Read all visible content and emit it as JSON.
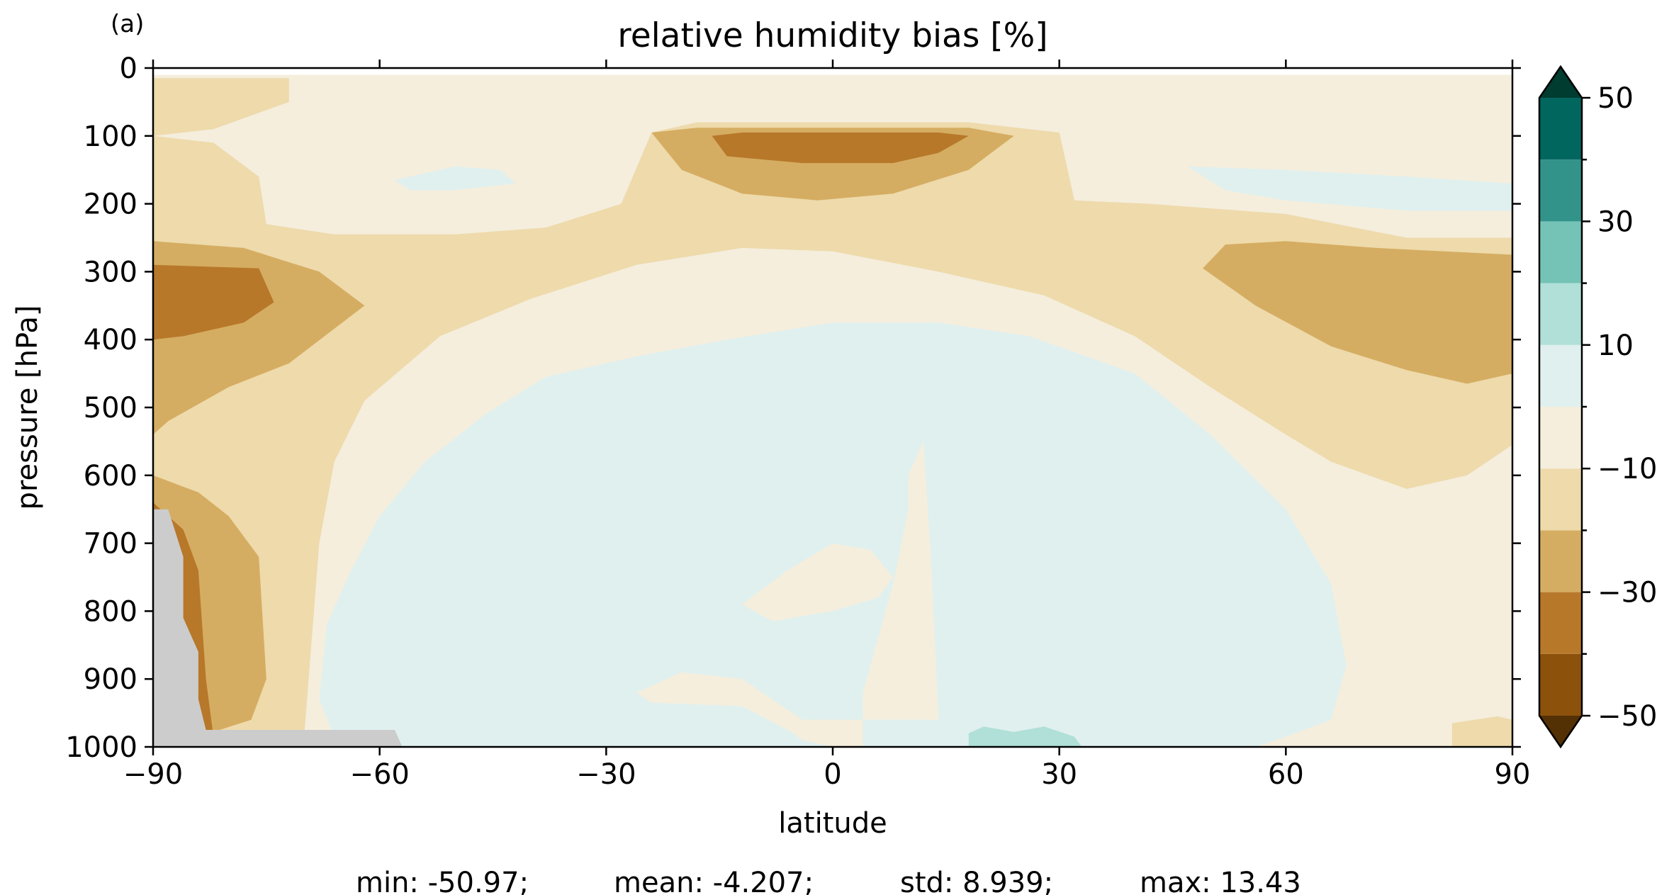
{
  "chart_data": {
    "type": "contour",
    "panel_label": "(a)",
    "title": "relative humidity bias [%]",
    "xlabel": "latitude",
    "ylabel": "pressure [hPa]",
    "xlim": [
      -90,
      90
    ],
    "ylim": [
      1000,
      0
    ],
    "xticks": [
      -90,
      -60,
      -30,
      0,
      30,
      60,
      90
    ],
    "xtick_labels": [
      "−90",
      "−60",
      "−30",
      "0",
      "30",
      "60",
      "90"
    ],
    "yticks": [
      0,
      100,
      200,
      300,
      400,
      500,
      600,
      700,
      800,
      900,
      1000
    ],
    "ytick_labels": [
      "0",
      "100",
      "200",
      "300",
      "400",
      "500",
      "600",
      "700",
      "800",
      "900",
      "1000"
    ],
    "colorbar": {
      "levels": [
        -50,
        -40,
        -30,
        -20,
        -10,
        0,
        10,
        20,
        30,
        40,
        50
      ],
      "labeled_ticks": [
        50,
        30,
        10,
        -10,
        -30,
        -50
      ],
      "tick_labels": [
        "50",
        "30",
        "10",
        "−10",
        "−30",
        "−50"
      ],
      "extend": "both",
      "colors": [
        "#8c510a",
        "#b7782a",
        "#d5ad62",
        "#eedaab",
        "#f5eedd",
        "#e0f0ef",
        "#b0e0d8",
        "#74c3b6",
        "#319389",
        "#01665e"
      ],
      "under_color": "#543005",
      "over_color": "#003c30"
    },
    "missing_color": "#cccccc",
    "stats": [
      {
        "label": "min: -50.97;"
      },
      {
        "label": "mean: -4.207;"
      },
      {
        "label": "std: 8.939;"
      },
      {
        "label": "max: 13.43"
      }
    ],
    "regions": [
      {
        "class": "-10 to 0",
        "points": [
          [
            -90,
            10
          ],
          [
            90,
            10
          ],
          [
            90,
            1000
          ],
          [
            -90,
            1000
          ]
        ]
      },
      {
        "class": "-20 to -10",
        "points": [
          [
            -90,
            15
          ],
          [
            -72,
            15
          ],
          [
            -72,
            50
          ],
          [
            -82,
            90
          ],
          [
            -90,
            100
          ]
        ]
      },
      {
        "class": "-20 to -10",
        "points": [
          [
            -90,
            100
          ],
          [
            -82,
            110
          ],
          [
            -76,
            160
          ],
          [
            -75,
            230
          ],
          [
            -66,
            245
          ],
          [
            -50,
            245
          ],
          [
            -38,
            235
          ],
          [
            -28,
            200
          ],
          [
            -24,
            95
          ],
          [
            -18,
            80
          ],
          [
            18,
            80
          ],
          [
            30,
            95
          ],
          [
            32,
            195
          ],
          [
            42,
            200
          ],
          [
            60,
            215
          ],
          [
            76,
            250
          ],
          [
            90,
            250
          ],
          [
            90,
            555
          ],
          [
            84,
            600
          ],
          [
            76,
            620
          ],
          [
            66,
            580
          ],
          [
            60,
            540
          ],
          [
            50,
            470
          ],
          [
            40,
            395
          ],
          [
            28,
            335
          ],
          [
            14,
            300
          ],
          [
            0,
            270
          ],
          [
            -12,
            265
          ],
          [
            -26,
            290
          ],
          [
            -40,
            340
          ],
          [
            -52,
            395
          ],
          [
            -62,
            490
          ],
          [
            -66,
            580
          ],
          [
            -68,
            700
          ],
          [
            -70,
            985
          ],
          [
            -90,
            985
          ]
        ]
      },
      {
        "class": "-20 to -10",
        "points": [
          [
            82,
            965
          ],
          [
            88,
            955
          ],
          [
            90,
            960
          ],
          [
            90,
            1000
          ],
          [
            82,
            1000
          ]
        ]
      },
      {
        "class": "-30 to -20",
        "points": [
          [
            -90,
            255
          ],
          [
            -78,
            265
          ],
          [
            -68,
            300
          ],
          [
            -62,
            350
          ],
          [
            -72,
            435
          ],
          [
            -80,
            470
          ],
          [
            -88,
            520
          ],
          [
            -90,
            540
          ]
        ]
      },
      {
        "class": "-30 to -20",
        "points": [
          [
            -90,
            600
          ],
          [
            -84,
            625
          ],
          [
            -80,
            660
          ],
          [
            -76,
            720
          ],
          [
            -75,
            900
          ],
          [
            -77,
            960
          ],
          [
            -84,
            985
          ],
          [
            -90,
            985
          ]
        ]
      },
      {
        "class": "-30 to -20",
        "points": [
          [
            -24,
            95
          ],
          [
            -18,
            88
          ],
          [
            18,
            88
          ],
          [
            24,
            100
          ],
          [
            18,
            150
          ],
          [
            8,
            185
          ],
          [
            -2,
            195
          ],
          [
            -12,
            185
          ],
          [
            -20,
            150
          ]
        ]
      },
      {
        "class": "-30 to -20",
        "points": [
          [
            49,
            295
          ],
          [
            52,
            260
          ],
          [
            60,
            255
          ],
          [
            72,
            265
          ],
          [
            90,
            275
          ],
          [
            90,
            450
          ],
          [
            84,
            465
          ],
          [
            76,
            445
          ],
          [
            66,
            410
          ],
          [
            56,
            350
          ]
        ]
      },
      {
        "class": "-40 to -30",
        "points": [
          [
            -90,
            290
          ],
          [
            -76,
            295
          ],
          [
            -74,
            345
          ],
          [
            -78,
            375
          ],
          [
            -86,
            395
          ],
          [
            -90,
            400
          ]
        ]
      },
      {
        "class": "-40 to -30",
        "points": [
          [
            -90,
            640
          ],
          [
            -86,
            680
          ],
          [
            -84,
            740
          ],
          [
            -83,
            900
          ],
          [
            -82,
            985
          ],
          [
            -87,
            985
          ],
          [
            -90,
            940
          ]
        ]
      },
      {
        "class": "-40 to -30",
        "points": [
          [
            -16,
            100
          ],
          [
            -12,
            95
          ],
          [
            14,
            95
          ],
          [
            18,
            100
          ],
          [
            14,
            125
          ],
          [
            8,
            140
          ],
          [
            -4,
            140
          ],
          [
            -14,
            130
          ]
        ]
      },
      {
        "class": "0 to 10",
        "points": [
          [
            -56,
            1000
          ],
          [
            -66,
            985
          ],
          [
            -68,
            930
          ],
          [
            -67,
            820
          ],
          [
            -64,
            745
          ],
          [
            -60,
            660
          ],
          [
            -54,
            580
          ],
          [
            -46,
            510
          ],
          [
            -38,
            455
          ],
          [
            -26,
            425
          ],
          [
            -14,
            400
          ],
          [
            0,
            375
          ],
          [
            14,
            375
          ],
          [
            26,
            395
          ],
          [
            40,
            450
          ],
          [
            50,
            540
          ],
          [
            60,
            650
          ],
          [
            66,
            760
          ],
          [
            68,
            880
          ],
          [
            66,
            960
          ],
          [
            60,
            985
          ],
          [
            56,
            1000
          ]
        ]
      },
      {
        "class": "0 to 10",
        "points": [
          [
            -58,
            165
          ],
          [
            -50,
            145
          ],
          [
            -44,
            150
          ],
          [
            -42,
            170
          ],
          [
            -50,
            180
          ],
          [
            -56,
            180
          ]
        ]
      },
      {
        "class": "0 to 10",
        "points": [
          [
            47,
            145
          ],
          [
            60,
            150
          ],
          [
            76,
            160
          ],
          [
            90,
            170
          ],
          [
            90,
            210
          ],
          [
            76,
            210
          ],
          [
            60,
            195
          ],
          [
            52,
            180
          ]
        ]
      },
      {
        "class": "-10 to 0",
        "points": [
          [
            12,
            550
          ],
          [
            13,
            720
          ],
          [
            14,
            960
          ],
          [
            -4,
            960
          ],
          [
            -8,
            930
          ],
          [
            -12,
            900
          ],
          [
            -20,
            890
          ],
          [
            -26,
            920
          ],
          [
            -24,
            935
          ],
          [
            -12,
            940
          ],
          [
            -6,
            975
          ],
          [
            -4,
            990
          ],
          [
            0,
            1000
          ],
          [
            4,
            1000
          ],
          [
            4,
            960
          ],
          [
            4,
            920
          ],
          [
            5,
            880
          ],
          [
            6,
            840
          ],
          [
            8,
            760
          ],
          [
            10,
            650
          ],
          [
            10,
            600
          ]
        ]
      },
      {
        "class": "-10 to 0",
        "points": [
          [
            -12,
            790
          ],
          [
            -6,
            740
          ],
          [
            0,
            700
          ],
          [
            5,
            710
          ],
          [
            8,
            750
          ],
          [
            6,
            780
          ],
          [
            0,
            800
          ],
          [
            -8,
            815
          ]
        ]
      },
      {
        "class": "10 to 20",
        "points": [
          [
            18,
            1000
          ],
          [
            18,
            980
          ],
          [
            20,
            970
          ],
          [
            24,
            978
          ],
          [
            28,
            970
          ],
          [
            32,
            985
          ],
          [
            33,
            1000
          ]
        ]
      },
      {
        "class": "missing",
        "points": [
          [
            -90,
            650
          ],
          [
            -88,
            650
          ],
          [
            -86,
            720
          ],
          [
            -86,
            810
          ],
          [
            -84,
            860
          ],
          [
            -84,
            930
          ],
          [
            -83,
            975
          ],
          [
            -58,
            975
          ],
          [
            -57,
            1000
          ],
          [
            -90,
            1000
          ]
        ]
      }
    ]
  }
}
